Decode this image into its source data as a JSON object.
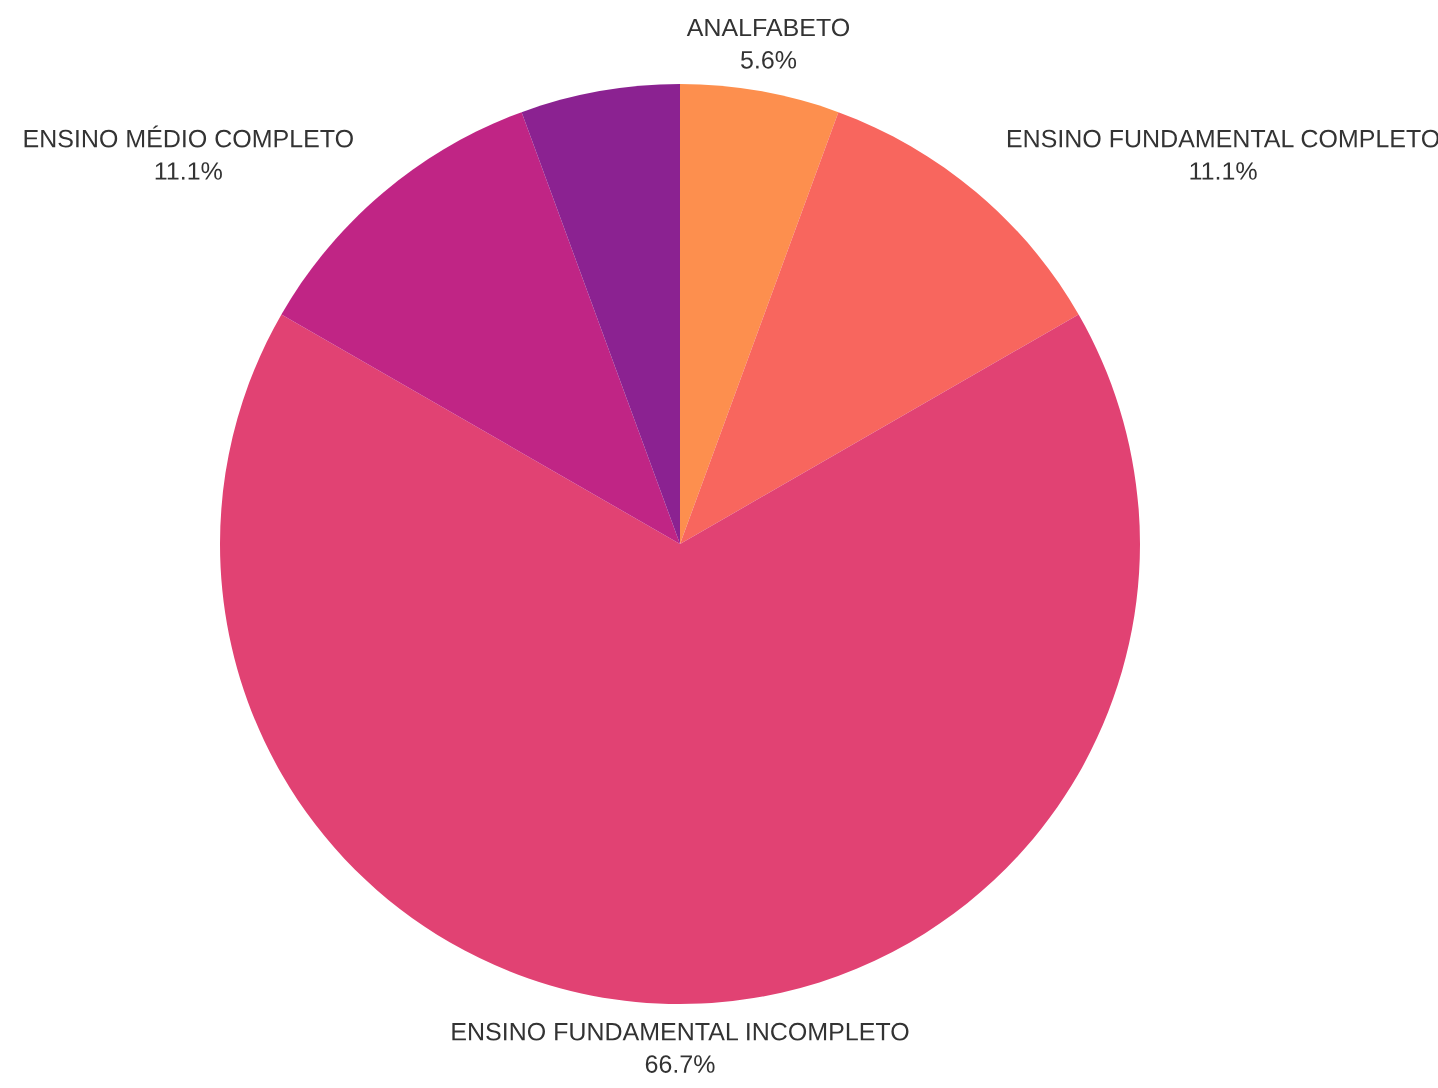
{
  "chart_data": {
    "type": "pie",
    "categories": [
      "ANALFABETO",
      "ENSINO FUNDAMENTAL COMPLETO",
      "ENSINO FUNDAMENTAL INCOMPLETO",
      "ENSINO MÉDIO COMPLETO",
      null
    ],
    "values": [
      5.6,
      11.1,
      66.7,
      11.1,
      5.6
    ],
    "value_labels": [
      "5.6%",
      "11.1%",
      "66.7%",
      "11.1%",
      null
    ],
    "colors": [
      "#fd8f4e",
      "#f8665e",
      "#e14273",
      "#c02585",
      "#8b2291"
    ]
  }
}
